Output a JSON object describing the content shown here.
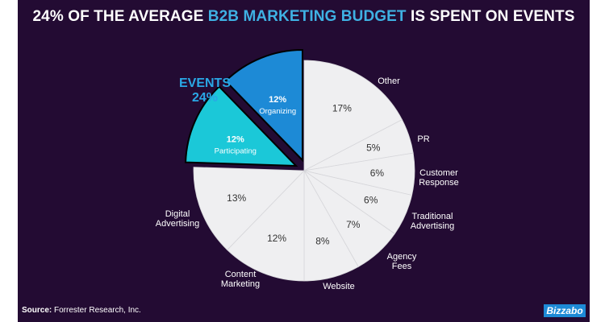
{
  "header": {
    "title_pre": "24% OF THE AVERAGE ",
    "title_accent": "B2B MARKETING BUDGET",
    "title_post": " IS SPENT ON EVENTS"
  },
  "footer": {
    "source_label": "Source:",
    "source_text": "Forrester Research, Inc.",
    "logo_text": "Bizzabo"
  },
  "callout": {
    "label": "EVENTS",
    "value": "24%"
  },
  "colors": {
    "background": "#230b33",
    "accent": "#3fb1e3",
    "organizing": "#1d8ad6",
    "participating": "#1bc8d8",
    "slice": "#efeff1",
    "callout": "#2aa8e6"
  },
  "chart_data": {
    "type": "pie",
    "title": "24% OF THE AVERAGE B2B MARKETING BUDGET IS SPENT ON EVENTS",
    "unit": "%",
    "slices": [
      {
        "label": "Other",
        "value": 17,
        "value_label": "17%"
      },
      {
        "label": "PR",
        "value": 5,
        "value_label": "5%"
      },
      {
        "label": "Customer Response",
        "value": 6,
        "value_label": "6%"
      },
      {
        "label": "Traditional Advertising",
        "value": 6,
        "value_label": "6%"
      },
      {
        "label": "Agency Fees",
        "value": 7,
        "value_label": "7%"
      },
      {
        "label": "Website",
        "value": 8,
        "value_label": "8%"
      },
      {
        "label": "Content Marketing",
        "value": 12,
        "value_label": "12%"
      },
      {
        "label": "Digital Advertising",
        "value": 13,
        "value_label": "13%"
      },
      {
        "label": "Participating",
        "value": 12,
        "value_label": "12%",
        "exploded": true,
        "group": "EVENTS"
      },
      {
        "label": "Organizing",
        "value": 12,
        "value_label": "12%",
        "exploded": true,
        "group": "EVENTS"
      }
    ]
  }
}
